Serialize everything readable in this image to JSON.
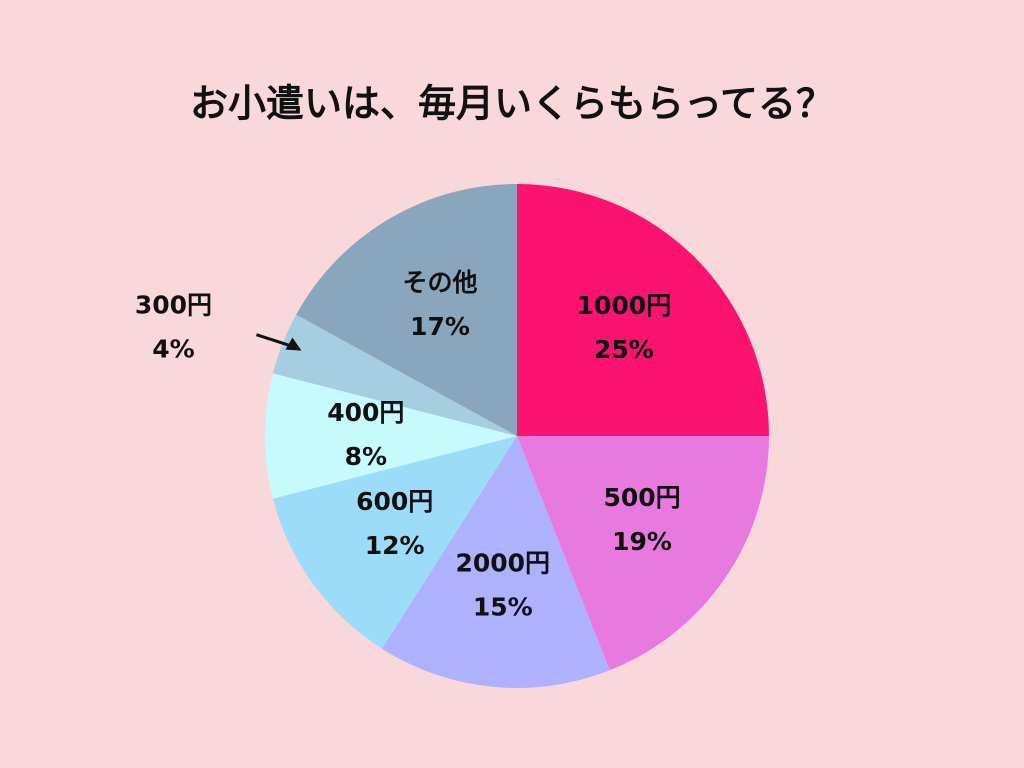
{
  "chart_data": {
    "type": "pie",
    "title": "お小遣いは、毎月いくらもらってる？",
    "categories": [
      "1000円",
      "500円",
      "2000円",
      "600円",
      "400円",
      "300円",
      "その他"
    ],
    "values": [
      25,
      19,
      15,
      12,
      8,
      4,
      17
    ],
    "value_labels": [
      "25%",
      "19%",
      "15%",
      "12%",
      "8%",
      "4%",
      "17%"
    ],
    "colors": [
      "#fb136f",
      "#e879de",
      "#aeb1fd",
      "#9ddcf9",
      "#c6fafd",
      "#a5cfe0",
      "#89a6bd"
    ]
  }
}
